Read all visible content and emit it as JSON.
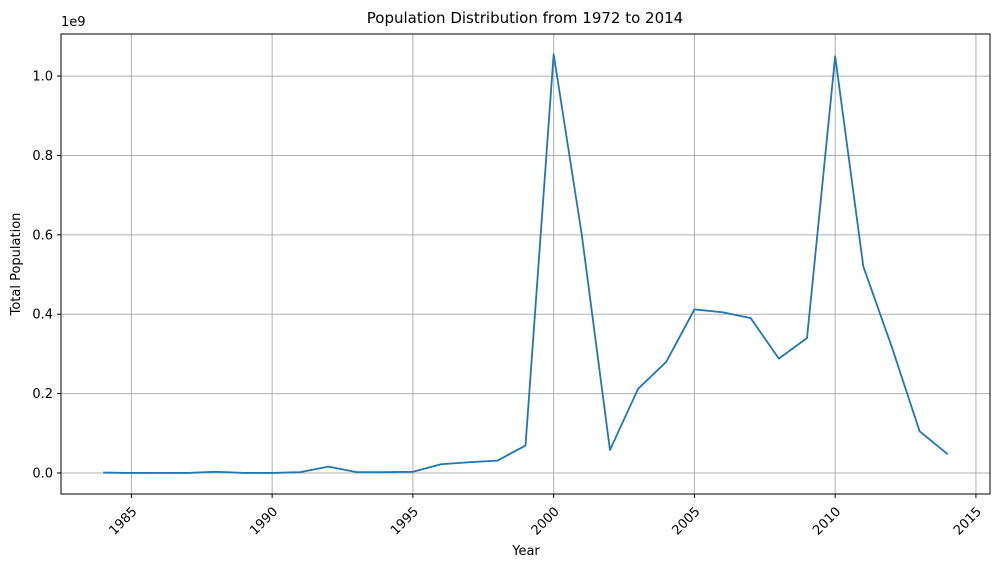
{
  "chart_data": {
    "type": "line",
    "title": "Population Distribution from 1972 to 2014",
    "xlabel": "Year",
    "ylabel": "Total Population",
    "y_multiplier_label": "1e9",
    "xlim": [
      1982.5,
      2015.5
    ],
    "ylim": [
      -0.053,
      1.106
    ],
    "x_ticks": [
      1985,
      1990,
      1995,
      2000,
      2005,
      2010,
      2015
    ],
    "x_tick_labels": [
      "1985",
      "1990",
      "1995",
      "2000",
      "2005",
      "2010",
      "2015"
    ],
    "y_ticks": [
      0.0,
      0.2,
      0.4,
      0.6,
      0.8,
      1.0
    ],
    "y_tick_labels": [
      "0.0",
      "0.2",
      "0.4",
      "0.6",
      "0.8",
      "1.0"
    ],
    "grid": true,
    "series": [
      {
        "color": "#1f77b4",
        "x": [
          1984,
          1985,
          1986,
          1987,
          1988,
          1989,
          1990,
          1991,
          1992,
          1993,
          1994,
          1995,
          1996,
          1997,
          1998,
          1999,
          2000,
          2001,
          2002,
          2003,
          2004,
          2005,
          2006,
          2007,
          2008,
          2009,
          2010,
          2011,
          2012,
          2013,
          2014
        ],
        "y": [
          0.001,
          0.0,
          0.0,
          0.0,
          0.003,
          0.0,
          0.0,
          0.002,
          0.016,
          0.002,
          0.002,
          0.003,
          0.022,
          0.027,
          0.031,
          0.069,
          1.055,
          0.6,
          0.058,
          0.212,
          0.28,
          0.412,
          0.405,
          0.39,
          0.288,
          0.34,
          1.05,
          0.52,
          0.32,
          0.105,
          0.047
        ]
      }
    ]
  }
}
